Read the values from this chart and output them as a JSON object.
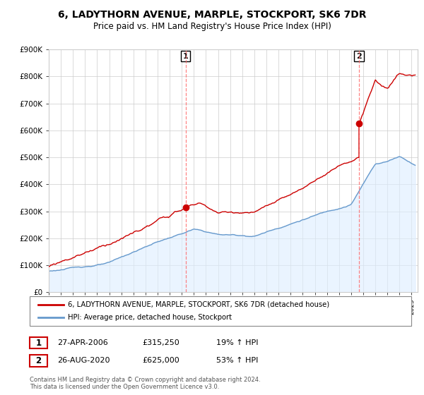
{
  "title": "6, LADYTHORN AVENUE, MARPLE, STOCKPORT, SK6 7DR",
  "subtitle": "Price paid vs. HM Land Registry's House Price Index (HPI)",
  "legend_property": "6, LADYTHORN AVENUE, MARPLE, STOCKPORT, SK6 7DR (detached house)",
  "legend_hpi": "HPI: Average price, detached house, Stockport",
  "sale1_date": "27-APR-2006",
  "sale1_price": "£315,250",
  "sale1_hpi": "19% ↑ HPI",
  "sale1_year": 2006.32,
  "sale1_value": 315250,
  "sale2_date": "26-AUG-2020",
  "sale2_price": "£625,000",
  "sale2_hpi": "53% ↑ HPI",
  "sale2_year": 2020.65,
  "sale2_value": 625000,
  "ylim": [
    0,
    900000
  ],
  "xlim_start": 1995.0,
  "xlim_end": 2025.5,
  "property_color": "#cc0000",
  "hpi_color": "#6699cc",
  "hpi_fill_color": "#ddeeff",
  "footnote": "Contains HM Land Registry data © Crown copyright and database right 2024.\nThis data is licensed under the Open Government Licence v3.0.",
  "background_color": "#ffffff",
  "grid_color": "#cccccc"
}
